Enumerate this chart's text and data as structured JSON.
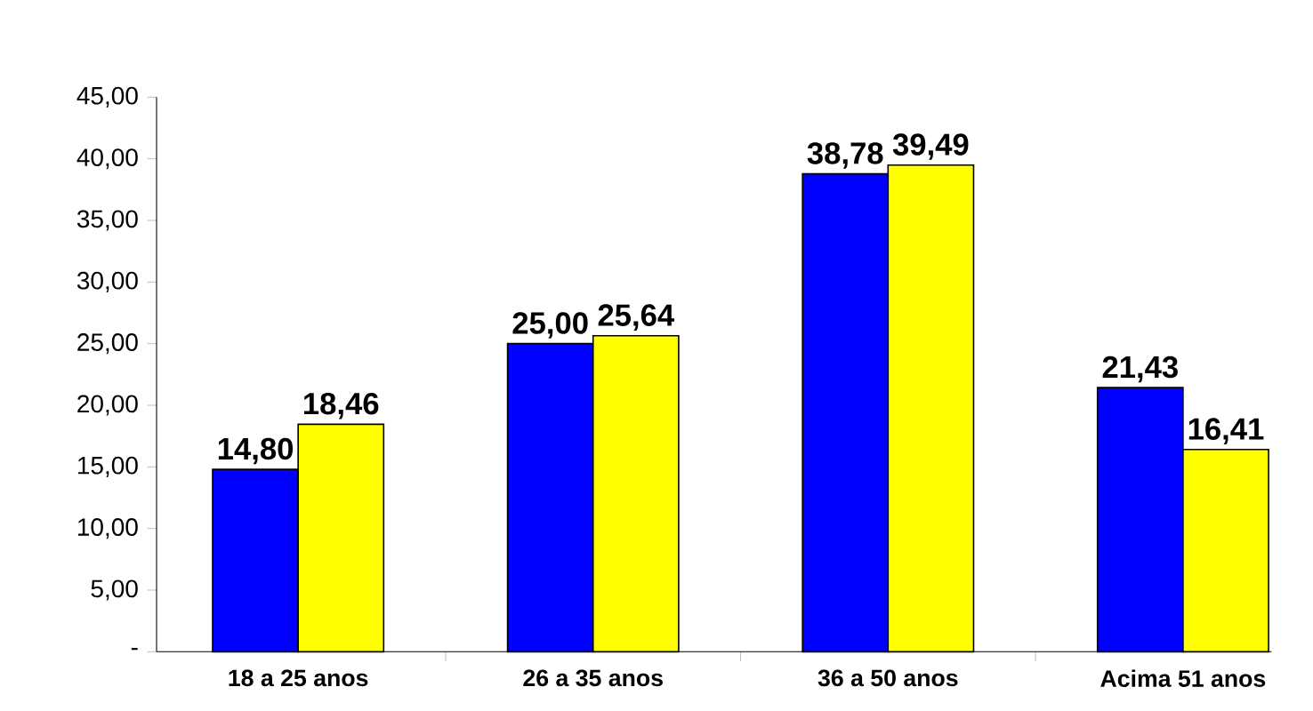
{
  "chart_data": {
    "type": "bar",
    "categories": [
      "18 a 25 anos",
      "26 a 35 anos",
      "36 a 50 anos",
      "Acima 51 anos"
    ],
    "series": [
      {
        "color": "#0000ff",
        "values": [
          14.8,
          25.0,
          38.78,
          21.43
        ],
        "value_labels": [
          "14,80",
          "25,00",
          "38,78",
          "21,43"
        ]
      },
      {
        "color": "#ffff00",
        "values": [
          18.46,
          25.64,
          39.49,
          16.41
        ],
        "value_labels": [
          "18,46",
          "25,64",
          "39,49",
          "16,41"
        ]
      }
    ],
    "ylim": [
      0,
      45
    ],
    "yticks": [
      {
        "value": 0,
        "label": "-"
      },
      {
        "value": 5,
        "label": "5,00"
      },
      {
        "value": 10,
        "label": "10,00"
      },
      {
        "value": 15,
        "label": "15,00"
      },
      {
        "value": 20,
        "label": "20,00"
      },
      {
        "value": 25,
        "label": "25,00"
      },
      {
        "value": 30,
        "label": "30,00"
      },
      {
        "value": 35,
        "label": "35,00"
      },
      {
        "value": 40,
        "label": "40,00"
      },
      {
        "value": 45,
        "label": "45,00"
      }
    ],
    "grid": false
  }
}
